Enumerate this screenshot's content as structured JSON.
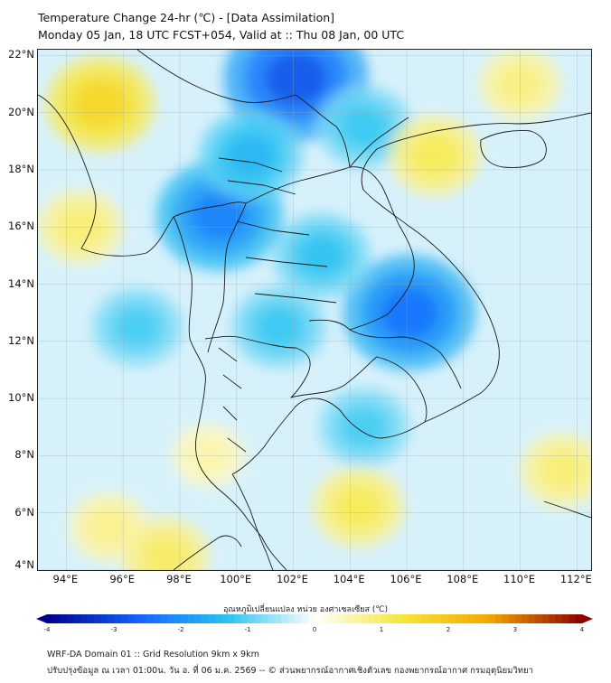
{
  "header": {
    "title_line1": "Temperature Change 24-hr (℃) - [Data Assimilation]",
    "title_line2": "Monday 05 Jan, 18 UTC FCST+054, Valid at :: Thu 08 Jan, 00 UTC"
  },
  "map": {
    "lon_range": [
      93,
      112.5
    ],
    "lat_range": [
      4,
      22.2
    ],
    "lat_labels": [
      "22°N",
      "20°N",
      "18°N",
      "16°N",
      "14°N",
      "12°N",
      "10°N",
      "8°N",
      "6°N",
      "4°N"
    ],
    "lon_labels": [
      "94°E",
      "96°E",
      "98°E",
      "100°E",
      "102°E",
      "104°E",
      "106°E",
      "108°E",
      "110°E",
      "112°E"
    ],
    "field_blobs": [
      {
        "lon": 102.1,
        "lat": 21.2,
        "value": -3.0
      },
      {
        "lon": 99.4,
        "lat": 16.4,
        "value": -2.4
      },
      {
        "lon": 106.1,
        "lat": 13.0,
        "value": -2.6
      },
      {
        "lon": 100.5,
        "lat": 18.5,
        "value": -1.6
      },
      {
        "lon": 103.0,
        "lat": 15.0,
        "value": -1.4
      },
      {
        "lon": 101.5,
        "lat": 12.5,
        "value": -1.3
      },
      {
        "lon": 104.5,
        "lat": 19.5,
        "value": -1.3
      },
      {
        "lon": 96.5,
        "lat": 12.5,
        "value": -1.2
      },
      {
        "lon": 104.5,
        "lat": 9.0,
        "value": -1.2
      },
      {
        "lon": 95.2,
        "lat": 20.3,
        "value": 1.8
      },
      {
        "lon": 94.5,
        "lat": 16.0,
        "value": 1.0
      },
      {
        "lon": 107.0,
        "lat": 18.5,
        "value": 1.2
      },
      {
        "lon": 110.0,
        "lat": 21.0,
        "value": 0.9
      },
      {
        "lon": 111.5,
        "lat": 7.5,
        "value": 1.0
      },
      {
        "lon": 104.3,
        "lat": 6.2,
        "value": 1.2
      },
      {
        "lon": 95.5,
        "lat": 5.5,
        "value": 0.8
      },
      {
        "lon": 97.5,
        "lat": 4.5,
        "value": 1.1
      },
      {
        "lon": 99.0,
        "lat": 8.0,
        "value": 0.6
      }
    ]
  },
  "colorbar": {
    "title": "อุณหภูมิเปลี่ยนแปลง หน่วย องศาเซลเซียส (℃)",
    "min": -4,
    "max": 4,
    "ticks": [
      "-4",
      "-3",
      "-2",
      "-1",
      "0",
      "1",
      "2",
      "3",
      "4"
    ]
  },
  "footer": {
    "line1": "WRF-DA Domain 01 :: Grid Resolution 9km x 9km",
    "line2": "ปรับปรุงข้อมูล ณ เวลา 01:00น. วัน อ. ที่ 06 ม.ค. 2569 -- © ส่วนพยากรณ์อากาศเชิงตัวเลข กองพยากรณ์อากาศ กรมอุตุนิยมวิทยา"
  },
  "colors": {
    "cold_max": "#00008b",
    "cold_mid": "#1565ff",
    "cool": "#29c3f0",
    "neutral": "#ffffff",
    "warm": "#f5e63a",
    "warm_mid": "#f5a800",
    "hot_max": "#8b0000",
    "coastline": "#1a1a1a",
    "gridline": "#9aa7b0"
  }
}
